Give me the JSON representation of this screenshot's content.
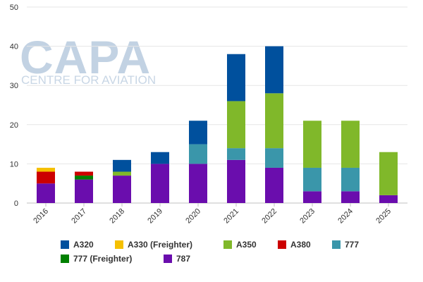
{
  "watermark": {
    "logo": "CAPA",
    "tagline": "CENTRE FOR AVIATION"
  },
  "chart_data": {
    "type": "bar",
    "stacked": true,
    "categories": [
      "2016",
      "2017",
      "2018",
      "2019",
      "2020",
      "2021",
      "2022",
      "2023",
      "2024",
      "2025"
    ],
    "ylim": [
      0,
      50
    ],
    "yticks": [
      0,
      10,
      20,
      30,
      40,
      50
    ],
    "grid": true,
    "legend_position": "bottom",
    "series": [
      {
        "name": "787",
        "color": "#6a0dad",
        "values": [
          5,
          6,
          7,
          10,
          10,
          11,
          9,
          3,
          3,
          2
        ]
      },
      {
        "name": "777 (Freighter)",
        "color": "#008000",
        "values": [
          0,
          1,
          0,
          0,
          0,
          0,
          0,
          0,
          0,
          0
        ]
      },
      {
        "name": "A380",
        "color": "#cc0000",
        "values": [
          3,
          1,
          0,
          0,
          0,
          0,
          0,
          0,
          0,
          0
        ]
      },
      {
        "name": "777",
        "color": "#3a96aa",
        "values": [
          0,
          0,
          0,
          0,
          5,
          3,
          5,
          6,
          6,
          0
        ]
      },
      {
        "name": "A350",
        "color": "#80b82a",
        "values": [
          0,
          0,
          1,
          0,
          0,
          12,
          14,
          12,
          12,
          11
        ]
      },
      {
        "name": "A330 (Freighter)",
        "color": "#f5c000",
        "values": [
          1,
          0,
          0,
          0,
          0,
          0,
          0,
          0,
          0,
          0
        ]
      },
      {
        "name": "A320",
        "color": "#00509d",
        "values": [
          0,
          0,
          3,
          3,
          6,
          12,
          12,
          0,
          0,
          0
        ]
      }
    ],
    "legend_order": [
      "A320",
      "A330 (Freighter)",
      "A350",
      "A380",
      "777",
      "777 (Freighter)",
      "787"
    ]
  }
}
